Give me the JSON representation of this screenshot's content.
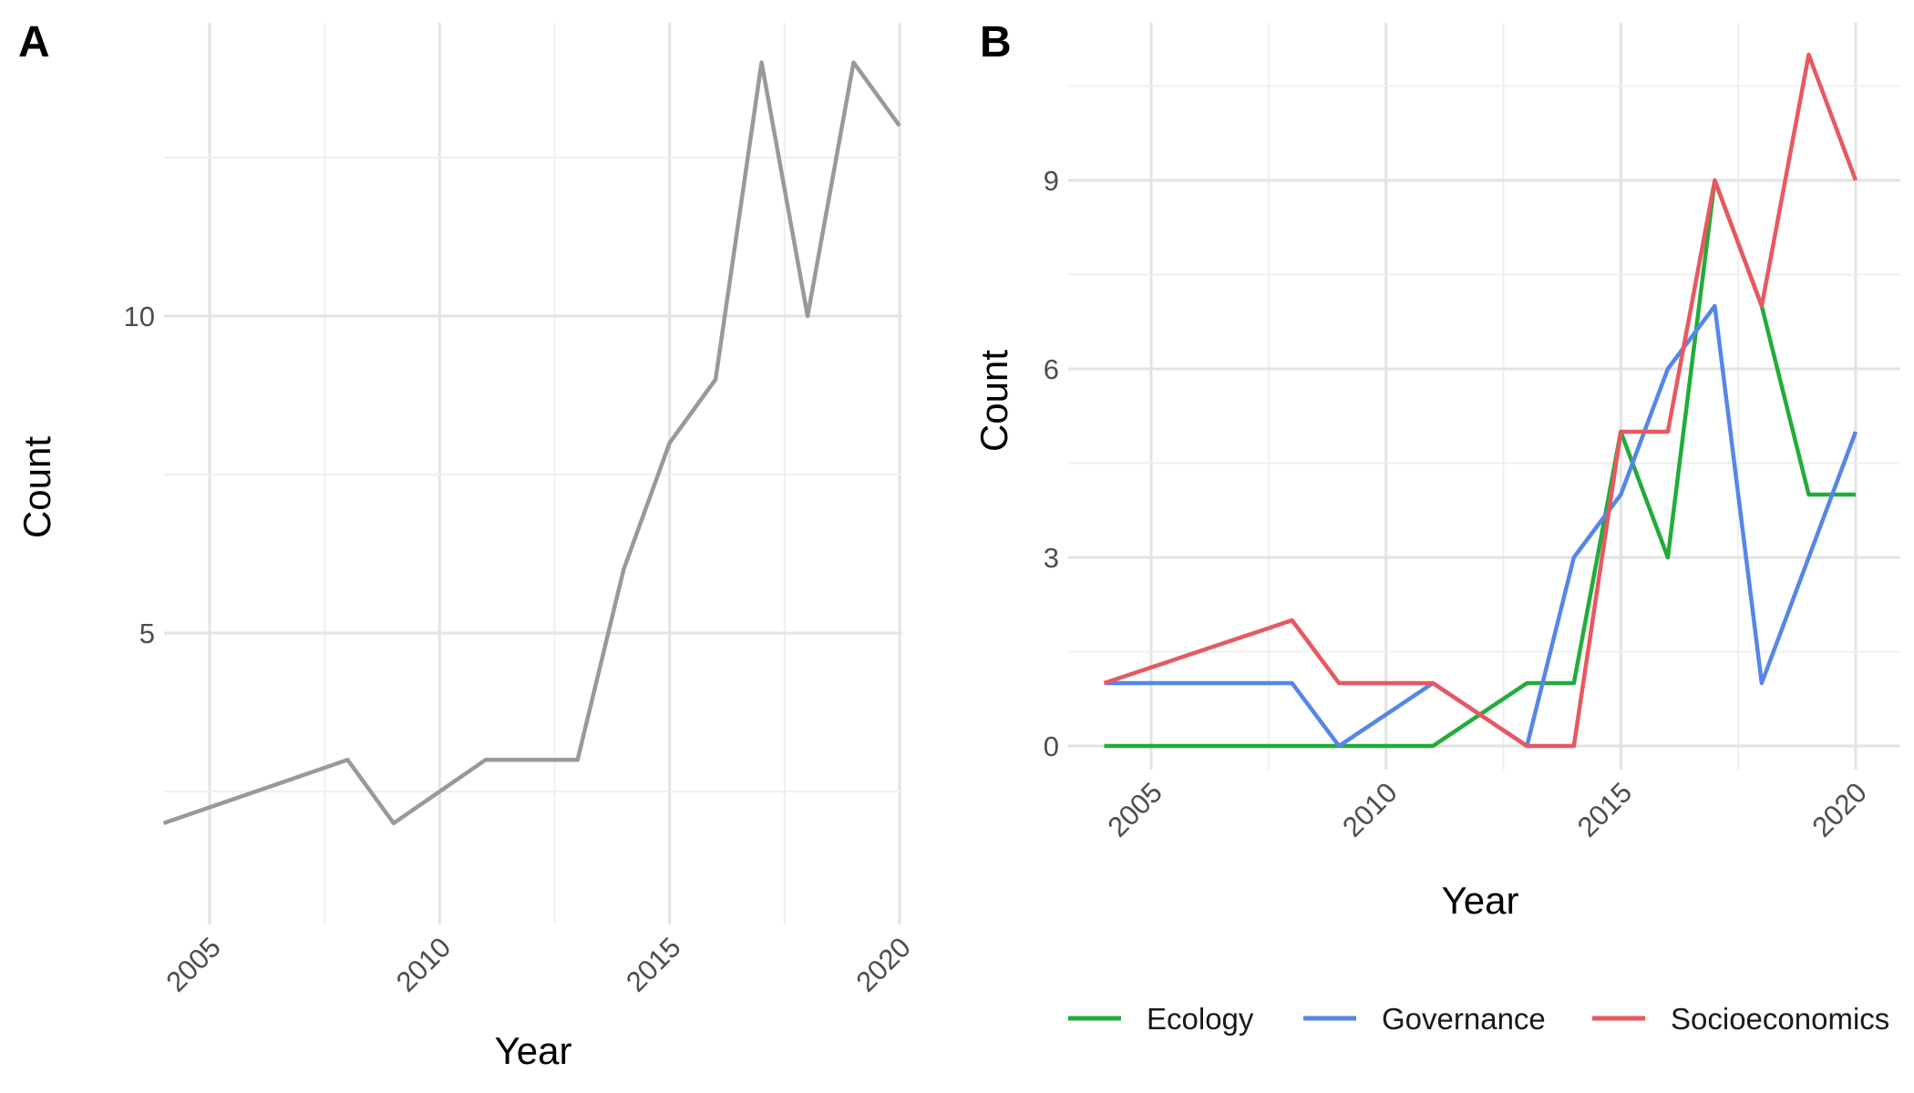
{
  "chart_data": [
    {
      "panel": "A",
      "type": "line",
      "title": "",
      "xlabel": "Year",
      "ylabel": "Count",
      "xlim": [
        2004,
        2020
      ],
      "ylim": [
        1,
        14
      ],
      "x_ticks": [
        2005,
        2010,
        2015,
        2020
      ],
      "y_ticks": [
        5,
        10
      ],
      "grid": true,
      "series": [
        {
          "color": "#999999",
          "x": [
            2004,
            2008,
            2009,
            2011,
            2013,
            2014,
            2015,
            2016,
            2017,
            2018,
            2019,
            2020
          ],
          "values": [
            2,
            3,
            2,
            3,
            3,
            6,
            8,
            9,
            14,
            10,
            14,
            13
          ]
        }
      ]
    },
    {
      "panel": "B",
      "type": "line",
      "title": "",
      "xlabel": "Year",
      "ylabel": "Count",
      "xlim": [
        2004,
        2020
      ],
      "ylim": [
        0,
        11
      ],
      "x_ticks": [
        2005,
        2010,
        2015,
        2020
      ],
      "y_ticks": [
        0,
        3,
        6,
        9
      ],
      "grid": true,
      "legend_position": "bottom",
      "series": [
        {
          "name": "Ecology",
          "color": "#22ac3a",
          "x": [
            2004,
            2005,
            2006,
            2007,
            2008,
            2009,
            2010,
            2011,
            2012,
            2013,
            2014,
            2015,
            2016,
            2017,
            2018,
            2019,
            2020
          ],
          "values": [
            0,
            0,
            0,
            0,
            0,
            0,
            0,
            0,
            0.5,
            1,
            1,
            5,
            3,
            9,
            7,
            4,
            4
          ]
        },
        {
          "name": "Governance",
          "color": "#5586e8",
          "x": [
            2004,
            2005,
            2006,
            2007,
            2008,
            2009,
            2010,
            2011,
            2012,
            2013,
            2014,
            2015,
            2016,
            2017,
            2018,
            2019,
            2020
          ],
          "values": [
            1,
            1,
            1,
            1,
            1,
            0,
            0.5,
            1,
            0.5,
            0,
            3,
            4,
            6,
            7,
            1,
            3,
            5
          ]
        },
        {
          "name": "Socioeconomics",
          "color": "#e8585e",
          "x": [
            2004,
            2005,
            2006,
            2007,
            2008,
            2009,
            2010,
            2011,
            2012,
            2013,
            2014,
            2015,
            2016,
            2017,
            2018,
            2019,
            2020
          ],
          "values": [
            1,
            1.25,
            1.5,
            1.75,
            2,
            1,
            1,
            1,
            0.5,
            0,
            0,
            5,
            5,
            9,
            7,
            11,
            9
          ]
        }
      ]
    }
  ]
}
